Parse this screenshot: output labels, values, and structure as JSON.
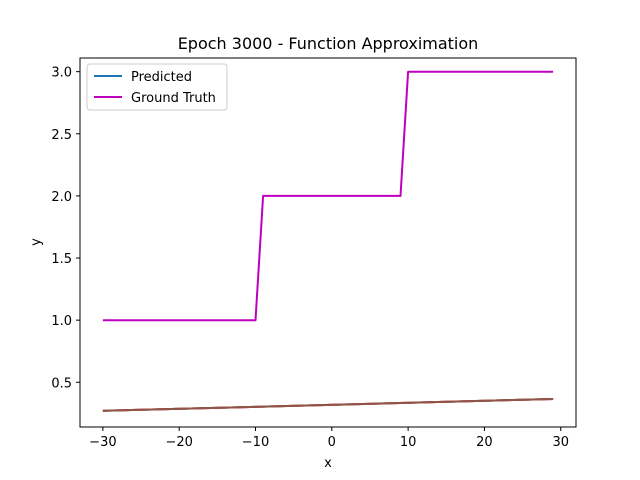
{
  "chart_data": {
    "type": "line",
    "title": "Epoch 3000 - Function Approximation",
    "xlabel": "x",
    "ylabel": "y",
    "xlim": [
      -33,
      32
    ],
    "ylim": [
      0.14,
      3.11
    ],
    "xticks": [
      -30,
      -20,
      -10,
      0,
      10,
      20,
      30
    ],
    "xtick_labels": [
      "−30",
      "−20",
      "−10",
      "0",
      "10",
      "20",
      "30"
    ],
    "yticks": [
      0.5,
      1.0,
      1.5,
      2.0,
      2.5,
      3.0
    ],
    "ytick_labels": [
      "0.5",
      "1.0",
      "1.5",
      "2.0",
      "2.5",
      "3.0"
    ],
    "grid": false,
    "legend_position": "upper-left",
    "series": [
      {
        "name": "Predicted",
        "color": "#1f77b4",
        "x": [
          -30,
          29
        ],
        "y": [
          0.27,
          0.365
        ]
      },
      {
        "name": "Ground Truth",
        "color": "#bf00bf",
        "x": [
          -30,
          -10,
          -9,
          9,
          10,
          29
        ],
        "y": [
          1.0,
          1.0,
          2.0,
          2.0,
          3.0,
          3.0
        ]
      },
      {
        "color": "#ff7f0e",
        "x": [
          -30,
          29
        ],
        "y": [
          0.27,
          0.365
        ]
      },
      {
        "color": "#d62728",
        "x": [
          -30,
          29
        ],
        "y": [
          0.27,
          0.365
        ]
      },
      {
        "color": "#8c564b",
        "x": [
          -30,
          29
        ],
        "y": [
          0.27,
          0.365
        ]
      }
    ]
  }
}
